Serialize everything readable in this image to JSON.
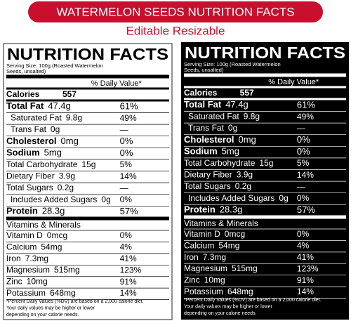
{
  "header": {
    "title": "WATERMELON SEEDS NUTRITION FACTS",
    "subtitle": "Editable Resizable"
  },
  "label": {
    "title": "NUTRITION FACTS",
    "serving": [
      "Serving Size: 100g (Roasted Watermelon",
      "Seeds, unsalted)"
    ],
    "daily_value_heading": "% Daily Value*",
    "calories": {
      "name": "Calories",
      "amount": "557"
    },
    "nutrients": [
      {
        "name": "Total Fat",
        "amount": "47.4g",
        "dv": "61%",
        "bold": true,
        "indent": false
      },
      {
        "name": "Saturated Fat",
        "amount": "9.8g",
        "dv": "49%",
        "bold": false,
        "indent": true
      },
      {
        "name": "Trans Fat",
        "amount": "0g",
        "dv": "—",
        "bold": false,
        "indent": true
      },
      {
        "name": "Cholesterol",
        "amount": "0mg",
        "dv": "0%",
        "bold": true,
        "indent": false
      },
      {
        "name": "Sodium",
        "amount": "5mg",
        "dv": "0%",
        "bold": true,
        "indent": false
      },
      {
        "name": "Total Carbohydrate",
        "amount": "15g",
        "dv": "5%",
        "bold": false,
        "indent": false
      },
      {
        "name": "Dietary Fiber",
        "amount": "3.9g",
        "dv": "14%",
        "bold": false,
        "indent": false
      },
      {
        "name": "Total Sugars",
        "amount": "0.2g",
        "dv": "—",
        "bold": false,
        "indent": false
      },
      {
        "name": "Includes Added Sugars",
        "amount": "0g",
        "dv": "0%",
        "bold": false,
        "indent": true
      },
      {
        "name": "Protein",
        "amount": "28.3g",
        "dv": "57%",
        "bold": true,
        "indent": false
      }
    ],
    "vitamins_heading": "Vitamins & Minerals",
    "vitamins": [
      {
        "name": "Vitamin D",
        "amount": "0mcg",
        "dv": "0%"
      },
      {
        "name": "Calcium",
        "amount": "54mg",
        "dv": "4%"
      },
      {
        "name": "Iron",
        "amount": "7.3mg",
        "dv": "41%"
      },
      {
        "name": "Magnesium",
        "amount": "515mg",
        "dv": "123%"
      },
      {
        "name": "Zinc",
        "amount": "10mg",
        "dv": "91%"
      },
      {
        "name": "Potassium",
        "amount": "648mg",
        "dv": "14%"
      }
    ],
    "footnote": [
      "*Percent Daily Values (%DV) are based on a 2,000 calorie diet.",
      "Your daily values may be higher or lower",
      "depending on your calorie needs."
    ]
  }
}
